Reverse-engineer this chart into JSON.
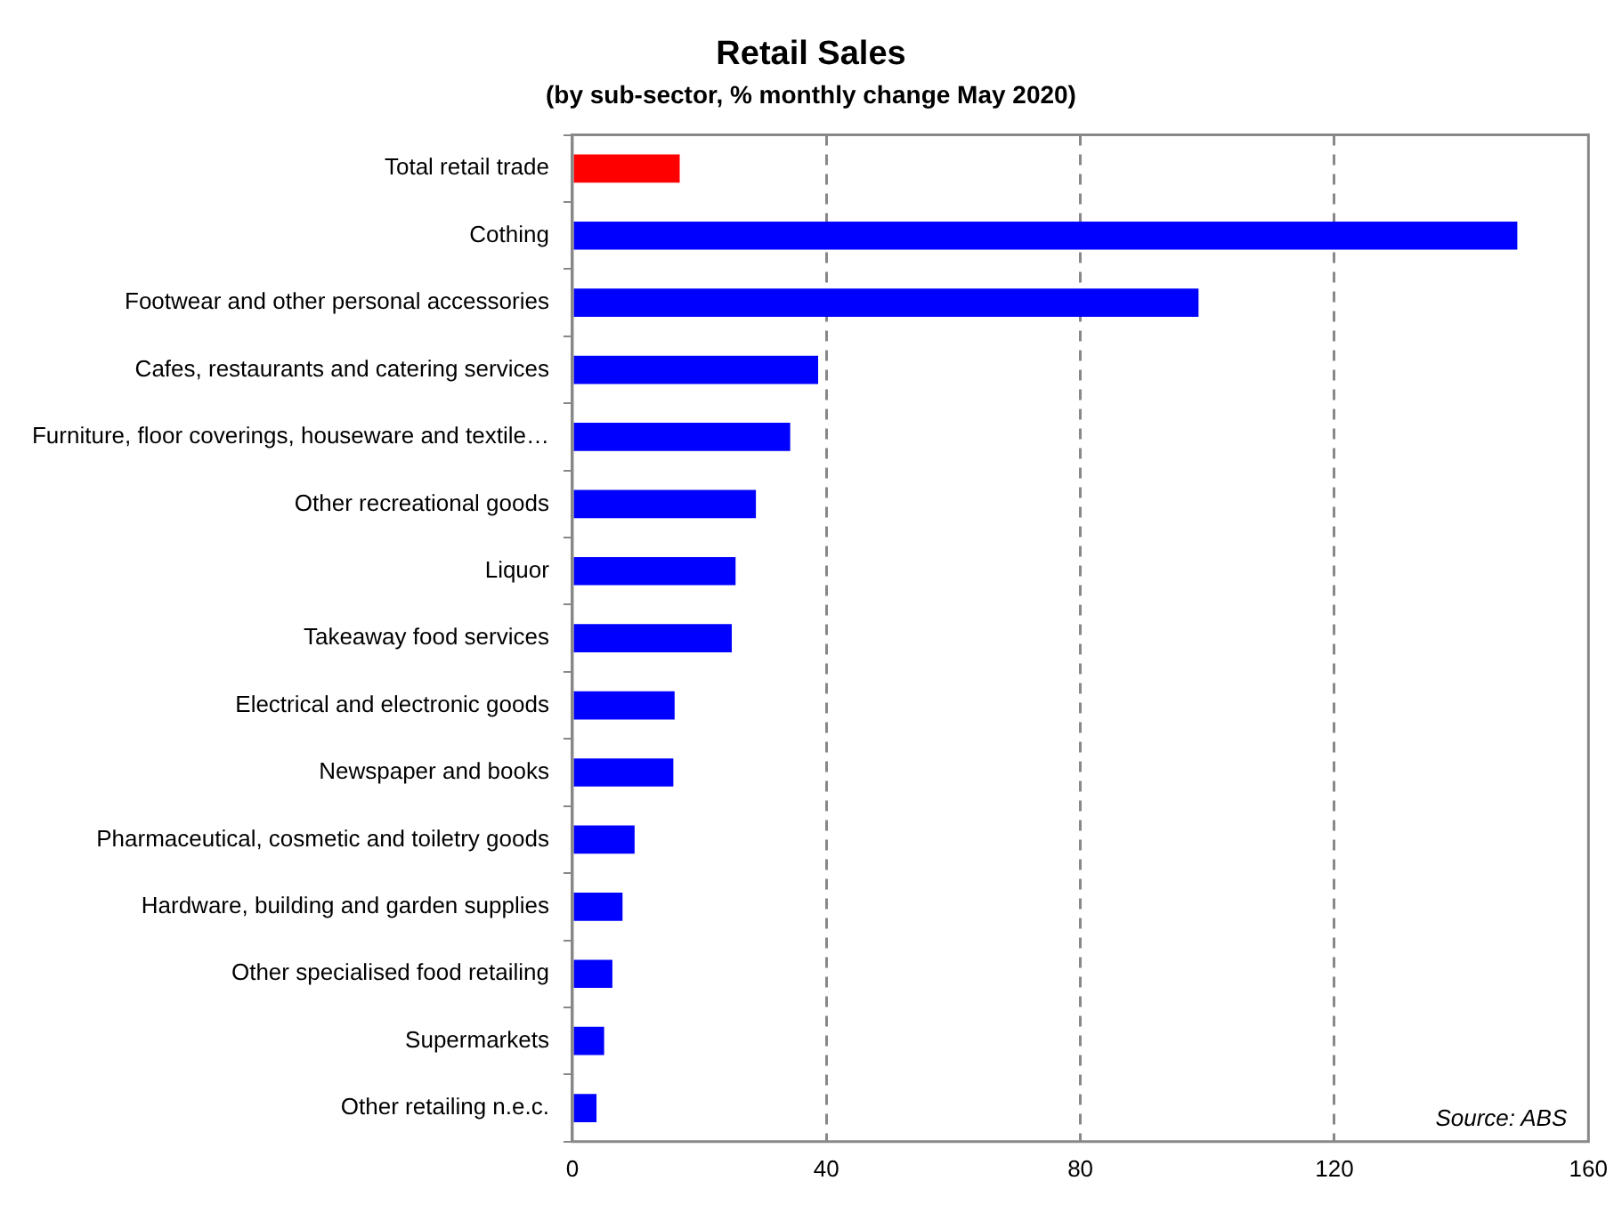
{
  "chart_data": {
    "type": "bar",
    "orientation": "horizontal",
    "title": "Retail Sales",
    "subtitle": "(by sub-sector, % monthly change May  2020)",
    "categories": [
      "Total retail trade",
      "Cothing",
      "Footwear and other personal accessories",
      "Cafes, restaurants and catering services",
      "Furniture, floor coverings, houseware and textile…",
      "Other recreational goods",
      "Liquor",
      "Takeaway food services",
      "Electrical and electronic goods",
      "Newspaper and books",
      "Pharmaceutical, cosmetic and toiletry goods",
      "Hardware, building and garden supplies",
      "Other specialised food retailing",
      "Supermarkets",
      "Other retailing n.e.c."
    ],
    "values": [
      16.9,
      148.8,
      98.6,
      38.7,
      34.3,
      28.9,
      25.7,
      25.1,
      16.1,
      15.9,
      9.8,
      7.9,
      6.3,
      5.0,
      3.8
    ],
    "colors": [
      "#ff0000",
      "#0000ff",
      "#0000ff",
      "#0000ff",
      "#0000ff",
      "#0000ff",
      "#0000ff",
      "#0000ff",
      "#0000ff",
      "#0000ff",
      "#0000ff",
      "#0000ff",
      "#0000ff",
      "#0000ff",
      "#0000ff"
    ],
    "xlim": [
      0,
      160
    ],
    "xticks": [
      0,
      40,
      80,
      120,
      160
    ],
    "grid": "x",
    "legend": false,
    "annotations": [
      "Source: ABS"
    ]
  }
}
